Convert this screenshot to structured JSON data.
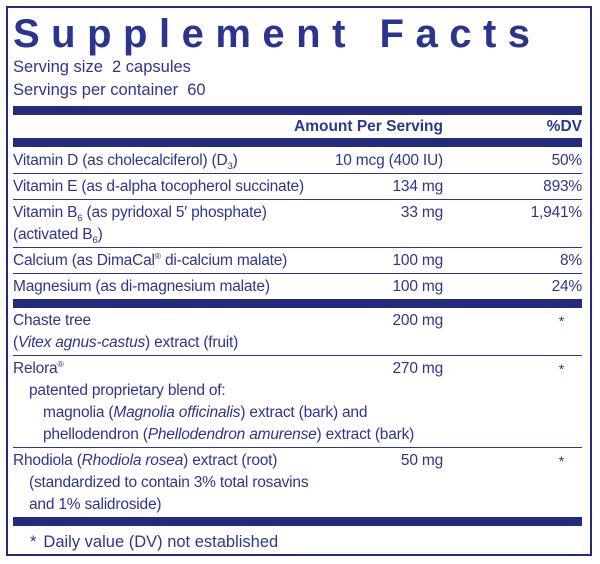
{
  "colors": {
    "navy_text": "#2e3590",
    "navy_bar": "#232c7c",
    "background": "#ffffff"
  },
  "header": {
    "title": "Supplement Facts",
    "serving_size": "Serving size  2 capsules",
    "servings_per_container": "Servings per container  60"
  },
  "columns": {
    "amount": "Amount Per Serving",
    "dv": "%DV"
  },
  "rows": {
    "vitamin_d": {
      "name_pre": "Vitamin D (as cholecalciferol) (D",
      "name_sub": "3",
      "name_post": ")",
      "amount": "10 mcg (400 IU)",
      "dv": "50%"
    },
    "vitamin_e": {
      "name": "Vitamin E (as d-alpha tocopherol succinate)",
      "amount": "134 mg",
      "dv": "893%"
    },
    "vitamin_b6": {
      "name_pre": "Vitamin B",
      "name_sub": "6",
      "name_post": " (as pyridoxal 5′ phosphate)",
      "line2_pre": "(activated B",
      "line2_sub": "6",
      "line2_post": ")",
      "amount": "33 mg",
      "dv": "1,941%"
    },
    "calcium": {
      "name_pre": "Calcium (as DimaCal",
      "name_reg": "®",
      "name_post": " di-calcium malate)",
      "amount": "100 mg",
      "dv": "8%"
    },
    "magnesium": {
      "name": "Magnesium (as di-magnesium malate)",
      "amount": "100 mg",
      "dv": "24%"
    },
    "chaste_tree": {
      "name": "Chaste tree",
      "line2_pre": "(",
      "line2_italic": "Vitex agnus-castus",
      "line2_post": ") extract (fruit)",
      "amount": "200 mg",
      "dv": "*"
    },
    "relora": {
      "name": "Relora",
      "name_reg": "®",
      "amount": "270 mg",
      "dv": "*",
      "sub1": "patented proprietary blend of:",
      "sub2_pre": "magnolia (",
      "sub2_italic": "Magnolia officinalis",
      "sub2_post": ") extract (bark) and",
      "sub3_pre": "phellodendron (",
      "sub3_italic": "Phellodendron amurense",
      "sub3_post": ") extract (bark)"
    },
    "rhodiola": {
      "name_pre": "Rhodiola (",
      "name_italic": "Rhodiola rosea",
      "name_post": ") extract (root)",
      "amount": "50 mg",
      "dv": "*",
      "sub1": "(standardized to contain 3% total rosavins",
      "sub2": "and 1% salidroside)"
    }
  },
  "footnote": {
    "symbol": "*",
    "text": "Daily value (DV) not established"
  }
}
